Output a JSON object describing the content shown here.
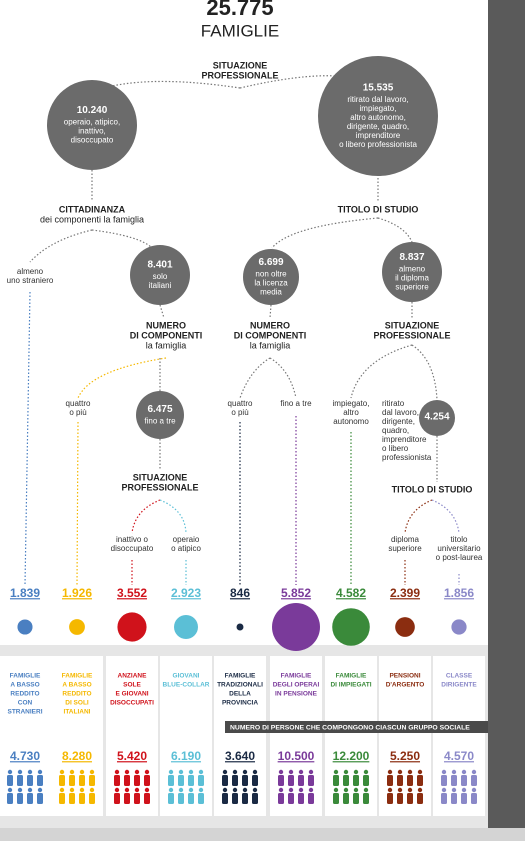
{
  "header": {
    "total": "25.775",
    "subtitle": "FAMIGLIE"
  },
  "headings": [
    {
      "bold": [
        "SITUAZIONE",
        "PROFESSIONALE"
      ],
      "text": []
    },
    {
      "bold": [
        "CITTADINANZA"
      ],
      "text": [
        "dei componenti la famiglia"
      ]
    },
    {
      "bold": [
        "TITOLO DI STUDIO"
      ],
      "text": []
    },
    {
      "bold": [
        "NUMERO",
        "DI COMPONENTI"
      ],
      "text": [
        "la famiglia"
      ]
    },
    {
      "bold": [
        "NUMERO",
        "DI COMPONENTI"
      ],
      "text": [
        "la famiglia"
      ]
    },
    {
      "bold": [
        "SITUAZIONE",
        "PROFESSIONALE"
      ],
      "text": []
    },
    {
      "bold": [
        "SITUAZIONE",
        "PROFESSIONALE"
      ],
      "text": []
    },
    {
      "bold": [
        "TITOLO DI STUDIO"
      ],
      "text": []
    }
  ],
  "nodes": [
    {
      "value": "10.240",
      "lines": [
        "operaio, atipico,",
        "inattivo,",
        "disoccupato"
      ]
    },
    {
      "value": "15.535",
      "lines": [
        "ritirato dal lavoro,",
        "impiegato,",
        "altro autonomo,",
        "dirigente, quadro,",
        "imprenditore",
        "o libero professionista"
      ]
    },
    {
      "value": "8.401",
      "lines": [
        "solo",
        "italiani"
      ]
    },
    {
      "value": "6.699",
      "lines": [
        "non oltre",
        "la licenza",
        "media"
      ]
    },
    {
      "value": "8.837",
      "lines": [
        "almeno",
        "il diploma",
        "superiore"
      ]
    },
    {
      "value": "6.475",
      "lines": [
        "fino a tre"
      ]
    },
    {
      "value": "4.254",
      "lines": []
    }
  ],
  "branches": [
    [
      "almeno",
      "uno straniero"
    ],
    [
      "quattro",
      "o più"
    ],
    [
      "quattro",
      "o più"
    ],
    [
      "fino a tre"
    ],
    [
      "impiegato,",
      "altro",
      "autonomo"
    ],
    [
      "ritirato",
      "dal lavoro,",
      "dirigente,",
      "quadro,",
      "imprenditore",
      "o libero",
      "professionista"
    ],
    [
      "inattivo o",
      "disoccupato"
    ],
    [
      "operaio",
      "o atipico"
    ],
    [
      "diploma",
      "superiore"
    ],
    [
      "titolo",
      "universitario",
      "o post-laurea"
    ]
  ],
  "groups": [
    {
      "value": 1839,
      "value_label": "1.839",
      "color": "#4a7fc1",
      "name": [
        "FAMIGLIE",
        "A BASSO",
        "REDDITO",
        "CON",
        "STRANIERI"
      ],
      "persons": "4.730"
    },
    {
      "value": 1926,
      "value_label": "1.926",
      "color": "#f5b800",
      "name": [
        "FAMIGLIE",
        "A BASSO",
        "REDDITO",
        "DI SOLI",
        "ITALIANI"
      ],
      "persons": "8.280"
    },
    {
      "value": 3552,
      "value_label": "3.552",
      "color": "#d0121b",
      "name": [
        "ANZIANE",
        "SOLE",
        "E GIOVANI",
        "DISOCCUPATI"
      ],
      "persons": "5.420"
    },
    {
      "value": 2923,
      "value_label": "2.923",
      "color": "#5bbfd6",
      "name": [
        "GIOVANI",
        "BLUE-COLLAR"
      ],
      "persons": "6.190"
    },
    {
      "value": 846,
      "value_label": "846",
      "color": "#1a2a44",
      "name": [
        "FAMIGLIE",
        "TRADIZIONALI",
        "DELLA",
        "PROVINCIA"
      ],
      "persons": "3.640"
    },
    {
      "value": 5852,
      "value_label": "5.852",
      "color": "#7a3a9a",
      "name": [
        "FAMIGLIE",
        "DEGLI OPERAI",
        "IN PENSIONE"
      ],
      "persons": "10.500"
    },
    {
      "value": 4582,
      "value_label": "4.582",
      "color": "#3a8a3a",
      "name": [
        "FAMIGLIE",
        "DI IMPIEGATI"
      ],
      "persons": "12.200"
    },
    {
      "value": 2399,
      "value_label": "2.399",
      "color": "#8b2d10",
      "name": [
        "PENSIONI",
        "D'ARGENTO"
      ],
      "persons": "5.250"
    },
    {
      "value": 1856,
      "value_label": "1.856",
      "color": "#8a88c8",
      "name": [
        "CLASSE",
        "DIRIGENTE"
      ],
      "persons": "4.570"
    }
  ],
  "persons_title": "NUMERO DI PERSONE CHE COMPONGONO CIASCUN GRUPPO SOCIALE"
}
